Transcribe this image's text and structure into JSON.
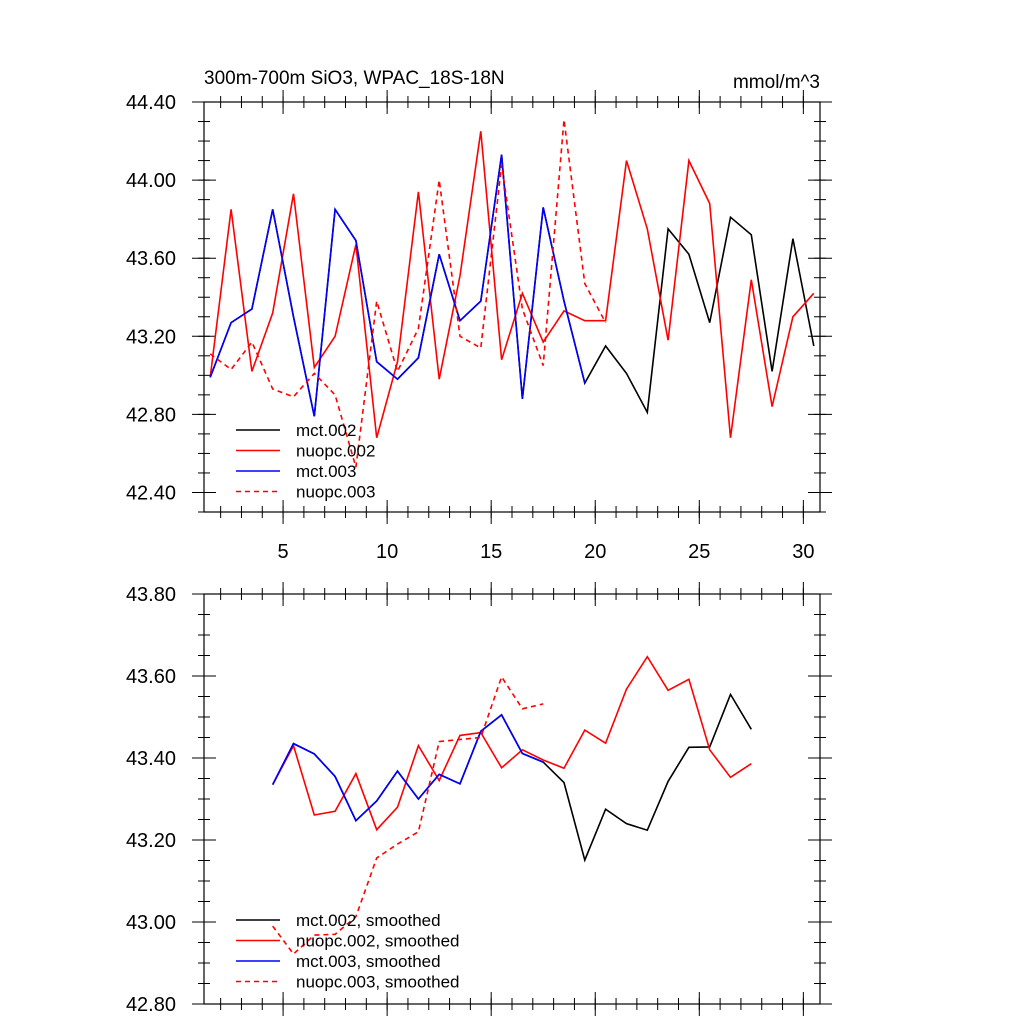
{
  "chart_data": [
    {
      "type": "line",
      "title": "300m-700m SiO3, WPAC_18S-18N",
      "units": "mmol/m^3",
      "xlim": [
        1.2,
        30.8
      ],
      "ylim": [
        42.3,
        44.4
      ],
      "xticks": [
        5,
        10,
        15,
        20,
        25,
        30
      ],
      "xtick_labels": [
        "5",
        "10",
        "15",
        "20",
        "25",
        "30"
      ],
      "yticks": [
        42.4,
        42.8,
        43.2,
        43.6,
        44.0,
        44.4
      ],
      "ytick_labels": [
        "42.40",
        "42.80",
        "43.20",
        "43.60",
        "44.00",
        "44.40"
      ],
      "legend_position": "bottom-left",
      "series": [
        {
          "name": "mct.002",
          "color": "#000000",
          "dash": "solid",
          "x": [
            1.5,
            2.5,
            3.5,
            4.5,
            5.5,
            6.5,
            7.5,
            8.5,
            9.5,
            10.5,
            11.5,
            12.5,
            13.5,
            14.5,
            15.5,
            16.5,
            17.5,
            18.5,
            19.5,
            20.5,
            21.5,
            22.5,
            23.5,
            24.5,
            25.5,
            26.5,
            27.5,
            28.5,
            29.5,
            30.5
          ],
          "y": [
            42.99,
            43.27,
            43.34,
            43.85,
            43.3,
            42.79,
            43.85,
            43.69,
            43.07,
            42.98,
            43.09,
            43.62,
            43.28,
            43.38,
            44.13,
            42.88,
            43.86,
            43.38,
            42.96,
            43.15,
            43.01,
            42.81,
            43.75,
            43.62,
            43.27,
            43.81,
            43.72,
            43.02,
            43.7,
            43.15
          ]
        },
        {
          "name": "nuopc.002",
          "color": "#ff0000",
          "dash": "solid",
          "x": [
            1.5,
            2.5,
            3.5,
            4.5,
            5.5,
            6.5,
            7.5,
            8.5,
            9.5,
            10.5,
            11.5,
            12.5,
            13.5,
            14.5,
            15.5,
            16.5,
            17.5,
            18.5,
            19.5,
            20.5,
            21.5,
            22.5,
            23.5,
            24.5,
            25.5,
            26.5,
            27.5,
            28.5,
            29.5,
            30.5
          ],
          "y": [
            42.99,
            43.85,
            43.02,
            43.32,
            43.93,
            43.04,
            43.2,
            43.67,
            42.68,
            43.07,
            43.94,
            42.98,
            43.51,
            44.25,
            43.08,
            43.42,
            43.17,
            43.33,
            43.28,
            43.28,
            44.1,
            43.75,
            43.18,
            44.1,
            43.88,
            42.68,
            43.49,
            42.84,
            43.3,
            43.42
          ]
        },
        {
          "name": "mct.003",
          "color": "#0000ff",
          "dash": "solid",
          "x": [
            1.5,
            2.5,
            3.5,
            4.5,
            5.5,
            6.5,
            7.5,
            8.5,
            9.5,
            10.5,
            11.5,
            12.5,
            13.5,
            14.5,
            15.5,
            16.5,
            17.5,
            18.5,
            19.5
          ],
          "y": [
            42.99,
            43.27,
            43.34,
            43.85,
            43.3,
            42.79,
            43.85,
            43.69,
            43.07,
            42.98,
            43.09,
            43.62,
            43.28,
            43.38,
            44.13,
            42.88,
            43.86,
            43.38,
            42.96
          ]
        },
        {
          "name": "nuopc.003",
          "color": "#ff0000",
          "dash": "dashed",
          "x": [
            1.5,
            2.5,
            3.5,
            4.5,
            5.5,
            6.5,
            7.5,
            8.5,
            9.5,
            10.5,
            11.5,
            12.5,
            13.5,
            14.5,
            15.5,
            16.5,
            17.5,
            18.5,
            19.5,
            20.5
          ],
          "y": [
            43.11,
            43.03,
            43.17,
            42.93,
            42.89,
            43.01,
            42.9,
            42.53,
            43.38,
            43.02,
            43.24,
            44.0,
            43.2,
            43.14,
            44.08,
            43.34,
            43.05,
            44.31,
            43.47,
            43.27
          ]
        }
      ]
    },
    {
      "type": "line",
      "title": "",
      "xlim": [
        1.2,
        30.8
      ],
      "ylim": [
        42.8,
        43.8
      ],
      "xticks": [
        5,
        10,
        15,
        20,
        25,
        30
      ],
      "xtick_labels": [],
      "yticks": [
        42.8,
        43.0,
        43.2,
        43.4,
        43.6,
        43.8
      ],
      "ytick_labels": [
        "42.80",
        "43.00",
        "43.20",
        "43.40",
        "43.60",
        "43.80"
      ],
      "legend_position": "bottom-left",
      "series": [
        {
          "name": "mct.002, smoothed",
          "color": "#000000",
          "dash": "solid",
          "x": [
            4.5,
            5.5,
            6.5,
            7.5,
            8.5,
            9.5,
            10.5,
            11.5,
            12.5,
            13.5,
            14.5,
            15.5,
            16.5,
            17.5,
            18.5,
            19.5,
            20.5,
            21.5,
            22.5,
            23.5,
            24.5,
            25.5,
            26.5,
            27.5
          ],
          "y": [
            43.335,
            43.435,
            43.41,
            43.355,
            43.247,
            43.295,
            43.368,
            43.3,
            43.36,
            43.337,
            43.465,
            43.505,
            43.411,
            43.39,
            43.34,
            43.151,
            43.275,
            43.24,
            43.224,
            43.343,
            43.426,
            43.427,
            43.555,
            43.47
          ]
        },
        {
          "name": "nuopc.002, smoothed",
          "color": "#ff0000",
          "dash": "solid",
          "x": [
            4.5,
            5.5,
            6.5,
            7.5,
            8.5,
            9.5,
            10.5,
            11.5,
            12.5,
            13.5,
            14.5,
            15.5,
            16.5,
            17.5,
            18.5,
            19.5,
            20.5,
            21.5,
            22.5,
            23.5,
            24.5,
            25.5,
            26.5,
            27.5
          ],
          "y": [
            43.335,
            43.43,
            43.261,
            43.27,
            43.362,
            43.225,
            43.28,
            43.43,
            43.345,
            43.455,
            43.462,
            43.376,
            43.42,
            43.395,
            43.375,
            43.468,
            43.436,
            43.568,
            43.647,
            43.565,
            43.592,
            43.42,
            43.353,
            43.386
          ]
        },
        {
          "name": "mct.003, smoothed",
          "color": "#0000ff",
          "dash": "solid",
          "x": [
            4.5,
            5.5,
            6.5,
            7.5,
            8.5,
            9.5,
            10.5,
            11.5,
            12.5,
            13.5,
            14.5,
            15.5,
            16.5,
            17.5
          ],
          "y": [
            43.335,
            43.435,
            43.41,
            43.355,
            43.247,
            43.295,
            43.368,
            43.3,
            43.36,
            43.337,
            43.465,
            43.505,
            43.411,
            43.39
          ]
        },
        {
          "name": "nuopc.003, smoothed",
          "color": "#ff0000",
          "dash": "dashed",
          "x": [
            4.5,
            5.5,
            6.5,
            7.5,
            8.5,
            9.5,
            10.5,
            11.5,
            12.5,
            13.5,
            14.5,
            15.5,
            16.5,
            17.5
          ],
          "y": [
            42.99,
            42.922,
            42.968,
            42.97,
            43.013,
            43.156,
            43.19,
            43.22,
            43.44,
            43.445,
            43.45,
            43.598,
            43.52,
            43.532
          ]
        }
      ]
    }
  ]
}
